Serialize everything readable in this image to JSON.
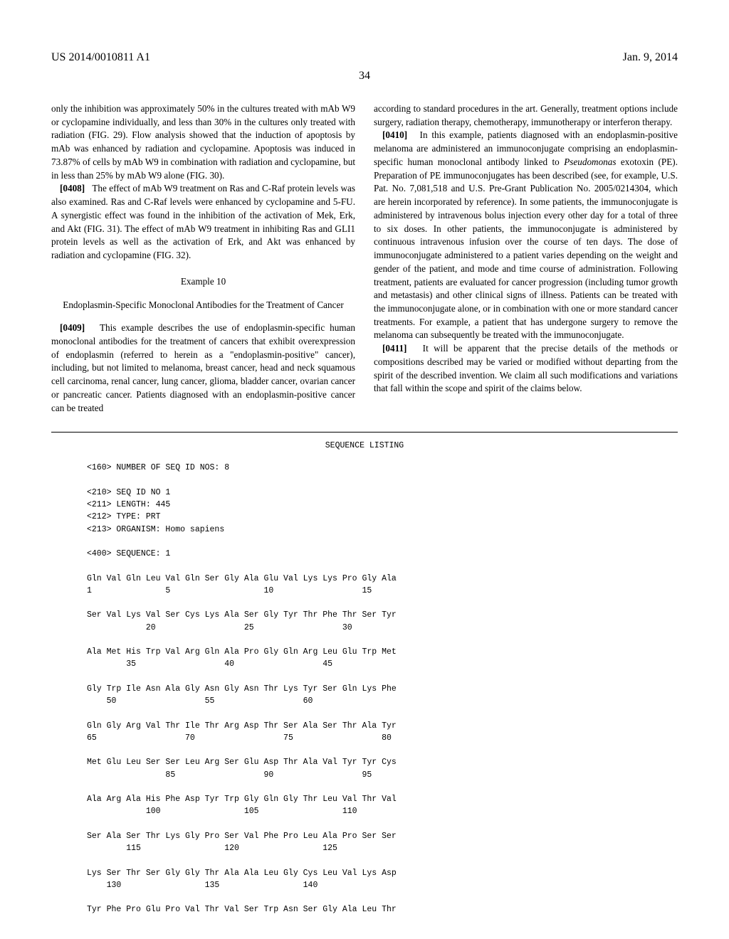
{
  "header": {
    "left": "US 2014/0010811 A1",
    "right": "Jan. 9, 2014"
  },
  "page_number": "34",
  "left_column": {
    "para1": "only the inhibition was approximately 50% in the cultures treated with mAb W9 or cyclopamine individually, and less than 30% in the cultures only treated with radiation (FIG. 29). Flow analysis showed that the induction of apoptosis by mAb was enhanced by radiation and cyclopamine. Apoptosis was induced in 73.87% of cells by mAb W9 in combination with radiation and cyclopamine, but in less than 25% by mAb W9 alone (FIG. 30).",
    "para2_num": "[0408]",
    "para2": "The effect of mAb W9 treatment on Ras and C-Raf protein levels was also examined. Ras and C-Raf levels were enhanced by cyclopamine and 5-FU. A synergistic effect was found in the inhibition of the activation of Mek, Erk, and Akt (FIG. 31). The effect of mAb W9 treatment in inhibiting Ras and GLI1 protein levels as well as the activation of Erk, and Akt was enhanced by radiation and cyclopamine (FIG. 32).",
    "example_num": "Example 10",
    "example_title": "Endoplasmin-Specific Monoclonal Antibodies for the Treatment of Cancer",
    "para3_num": "[0409]",
    "para3": "This example describes the use of endoplasmin-specific human monoclonal antibodies for the treatment of cancers that exhibit overexpression of endoplasmin (referred to herein as a \"endoplasmin-positive\" cancer), including, but not limited to melanoma, breast cancer, head and neck squamous cell carcinoma, renal cancer, lung cancer, glioma, bladder cancer, ovarian cancer or pancreatic cancer. Patients diagnosed with an endoplasmin-positive cancer can be treated"
  },
  "right_column": {
    "para1": "according to standard procedures in the art. Generally, treatment options include surgery, radiation therapy, chemotherapy, immunotherapy or interferon therapy.",
    "para2_num": "[0410]",
    "para2a": "In this example, patients diagnosed with an endoplasmin-positive melanoma are administered an immunoconjugate comprising an endoplasmin-specific human monoclonal antibody linked to ",
    "para2_italic": "Pseudomonas",
    "para2b": " exotoxin (PE). Preparation of PE immunoconjugates has been described (see, for example, U.S. Pat. No. 7,081,518 and U.S. Pre-Grant Publication No. 2005/0214304, which are herein incorporated by reference). In some patients, the immunoconjugate is administered by intravenous bolus injection every other day for a total of three to six doses. In other patients, the immunoconjugate is administered by continuous intravenous infusion over the course of ten days. The dose of immunoconjugate administered to a patient varies depending on the weight and gender of the patient, and mode and time course of administration. Following treatment, patients are evaluated for cancer progression (including tumor growth and metastasis) and other clinical signs of illness. Patients can be treated with the immunoconjugate alone, or in combination with one or more standard cancer treatments. For example, a patient that has undergone surgery to remove the melanoma can subsequently be treated with the immunoconjugate.",
    "para3_num": "[0411]",
    "para3": "It will be apparent that the precise details of the methods or compositions described may be varied or modified without departing from the spirit of the described invention. We claim all such modifications and variations that fall within the scope and spirit of the claims below."
  },
  "sequence": {
    "title": "SEQUENCE LISTING",
    "body": "<160> NUMBER OF SEQ ID NOS: 8\n\n<210> SEQ ID NO 1\n<211> LENGTH: 445\n<212> TYPE: PRT\n<213> ORGANISM: Homo sapiens\n\n<400> SEQUENCE: 1\n\nGln Val Gln Leu Val Gln Ser Gly Ala Glu Val Lys Lys Pro Gly Ala\n1               5                   10                  15\n\nSer Val Lys Val Ser Cys Lys Ala Ser Gly Tyr Thr Phe Thr Ser Tyr\n            20                  25                  30\n\nAla Met His Trp Val Arg Gln Ala Pro Gly Gln Arg Leu Glu Trp Met\n        35                  40                  45\n\nGly Trp Ile Asn Ala Gly Asn Gly Asn Thr Lys Tyr Ser Gln Lys Phe\n    50                  55                  60\n\nGln Gly Arg Val Thr Ile Thr Arg Asp Thr Ser Ala Ser Thr Ala Tyr\n65                  70                  75                  80\n\nMet Glu Leu Ser Ser Leu Arg Ser Glu Asp Thr Ala Val Tyr Tyr Cys\n                85                  90                  95\n\nAla Arg Ala His Phe Asp Tyr Trp Gly Gln Gly Thr Leu Val Thr Val\n            100                 105                 110\n\nSer Ala Ser Thr Lys Gly Pro Ser Val Phe Pro Leu Ala Pro Ser Ser\n        115                 120                 125\n\nLys Ser Thr Ser Gly Gly Thr Ala Ala Leu Gly Cys Leu Val Lys Asp\n    130                 135                 140\n\nTyr Phe Pro Glu Pro Val Thr Val Ser Trp Asn Ser Gly Ala Leu Thr"
  }
}
